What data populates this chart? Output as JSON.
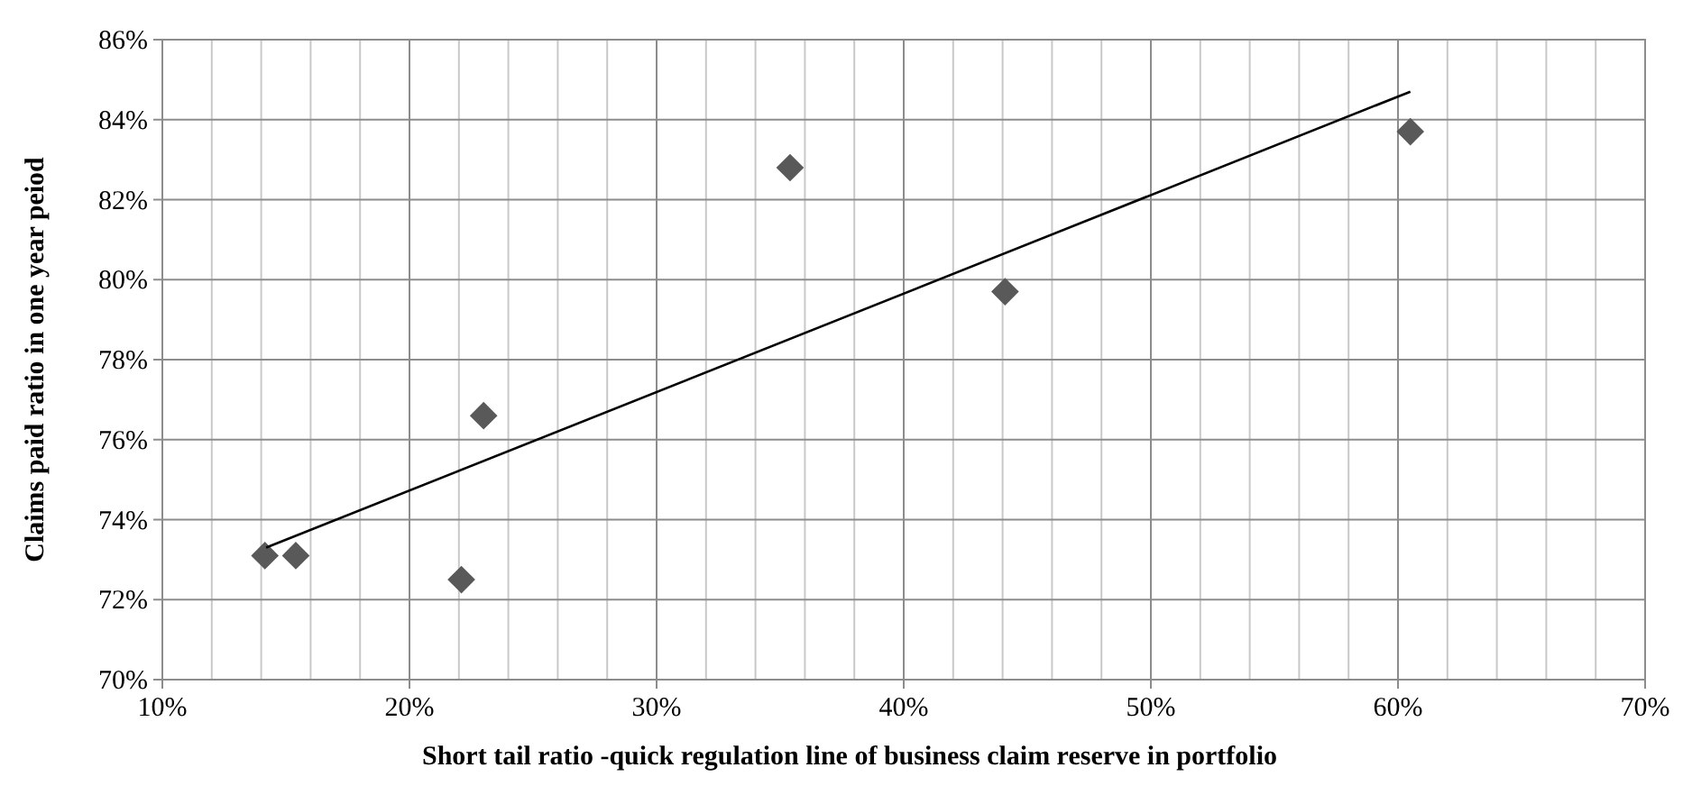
{
  "chart_data": {
    "type": "scatter",
    "xlabel": "Short tail ratio -quick regulation line of business claim reserve in portfolio",
    "ylabel": "Claims paid ratio in one year peiod",
    "xlim": [
      10,
      70
    ],
    "ylim": [
      70,
      86
    ],
    "xticks": [
      {
        "value": 10,
        "label": "10%"
      },
      {
        "value": 12,
        "label": null
      },
      {
        "value": 14,
        "label": null
      },
      {
        "value": 16,
        "label": null
      },
      {
        "value": 18,
        "label": null
      },
      {
        "value": 20,
        "label": "20%"
      },
      {
        "value": 22,
        "label": null
      },
      {
        "value": 24,
        "label": null
      },
      {
        "value": 26,
        "label": null
      },
      {
        "value": 28,
        "label": null
      },
      {
        "value": 30,
        "label": "30%"
      },
      {
        "value": 32,
        "label": null
      },
      {
        "value": 34,
        "label": null
      },
      {
        "value": 36,
        "label": null
      },
      {
        "value": 38,
        "label": null
      },
      {
        "value": 40,
        "label": "40%"
      },
      {
        "value": 42,
        "label": null
      },
      {
        "value": 44,
        "label": null
      },
      {
        "value": 46,
        "label": null
      },
      {
        "value": 48,
        "label": null
      },
      {
        "value": 50,
        "label": "50%"
      },
      {
        "value": 52,
        "label": null
      },
      {
        "value": 54,
        "label": null
      },
      {
        "value": 56,
        "label": null
      },
      {
        "value": 58,
        "label": null
      },
      {
        "value": 60,
        "label": "60%"
      },
      {
        "value": 62,
        "label": null
      },
      {
        "value": 64,
        "label": null
      },
      {
        "value": 66,
        "label": null
      },
      {
        "value": 68,
        "label": null
      },
      {
        "value": 70,
        "label": "70%"
      }
    ],
    "yticks": [
      {
        "value": 70,
        "label": "70%"
      },
      {
        "value": 72,
        "label": "72%"
      },
      {
        "value": 74,
        "label": "74%"
      },
      {
        "value": 76,
        "label": "76%"
      },
      {
        "value": 78,
        "label": "78%"
      },
      {
        "value": 80,
        "label": "80%"
      },
      {
        "value": 82,
        "label": "82%"
      },
      {
        "value": 84,
        "label": "84%"
      },
      {
        "value": 86,
        "label": "86%"
      }
    ],
    "grid": true,
    "marker": "diamond",
    "series": [
      {
        "color": "#595959",
        "x": [
          14.15,
          15.4,
          22.1,
          23,
          35.4,
          44.1,
          60.5
        ],
        "values": [
          73.1,
          73.1,
          72.5,
          76.6,
          82.8,
          79.7,
          83.7
        ]
      },
      {
        "type": "line",
        "color": "#000000",
        "marker": "none",
        "x": [
          14.2,
          60.5
        ],
        "values": [
          73.3,
          84.7
        ]
      }
    ]
  }
}
